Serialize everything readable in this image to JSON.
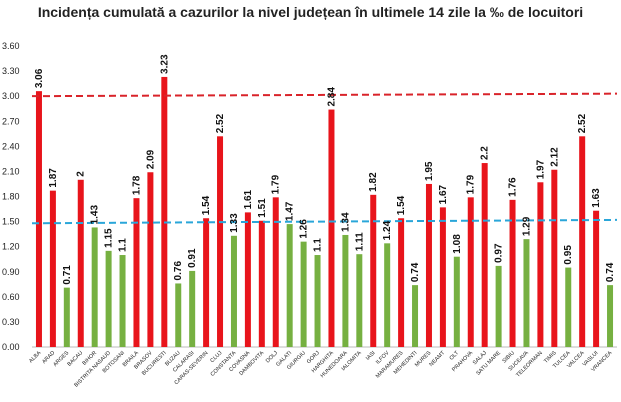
{
  "chart_data": {
    "type": "bar",
    "title": "Incidența cumulată a cazurilor la nivel județean în ultimele 14 zile la ‰ de locuitori",
    "xlabel": "",
    "ylabel": "",
    "ylim": [
      0,
      3.6
    ],
    "yticks": [
      "0.00",
      "0.30",
      "0.60",
      "0.90",
      "1.20",
      "1.50",
      "1.80",
      "2.10",
      "2.40",
      "2.70",
      "3.00",
      "3.30",
      "3.60"
    ],
    "categories": [
      "ALBA",
      "ARAD",
      "ARGES",
      "BACAU",
      "BIHOR",
      "BISTRITA NASAUD",
      "BOTOSANI",
      "BRAILA",
      "BRASOV",
      "BUCURESTI",
      "BUZAU",
      "CALARASI",
      "CARAS-SEVERIN",
      "CLUJ",
      "CONSTANTA",
      "COVASNA",
      "DAMBOVITA",
      "DOLJ",
      "GALATI",
      "GIURGIU",
      "GORJ",
      "HARGHITA",
      "HUNEDOARA",
      "IALOMITA",
      "IASI",
      "ILFOV",
      "MARAMURES",
      "MEHEDINTI",
      "MURES",
      "NEAMT",
      "OLT",
      "PRAHOVA",
      "SALAJ",
      "SATU MARE",
      "SIBIU",
      "SUCEAVA",
      "TELEORMAN",
      "TIMIS",
      "TULCEA",
      "VALCEA",
      "VASLUI",
      "VRANCEA"
    ],
    "values": [
      3.06,
      1.87,
      0.71,
      2,
      1.43,
      1.15,
      1.1,
      1.78,
      2.09,
      3.23,
      0.76,
      0.91,
      1.54,
      2.52,
      1.33,
      1.61,
      1.51,
      1.79,
      1.47,
      1.26,
      1.1,
      2.84,
      1.34,
      1.11,
      1.82,
      1.24,
      1.54,
      0.74,
      1.95,
      1.67,
      1.08,
      1.79,
      2.2,
      0.97,
      1.76,
      1.29,
      1.97,
      2.12,
      0.95,
      2.52,
      1.63,
      0.74
    ],
    "value_labels": [
      "3.06",
      "1.87",
      "0.71",
      "2",
      "1.43",
      "1.15",
      "1.1",
      "1.78",
      "2.09",
      "3.23",
      "0.76",
      "0.91",
      "1.54",
      "2.52",
      "1.33",
      "1.61",
      "1.51",
      "1.79",
      "1.47",
      "1.26",
      "1.1",
      "2.84",
      "1.34",
      "1.11",
      "1.82",
      "1.24",
      "1.54",
      "0.74",
      "1.95",
      "1.67",
      "1.08",
      "1.79",
      "2.2",
      "0.97",
      "1.76",
      "1.29",
      "1.97",
      "2.12",
      "0.95",
      "2.52",
      "1.63",
      "0.74"
    ],
    "colors": {
      "above": "#e8141b",
      "below": "#76b041",
      "upper_threshold_line": "#d9232a",
      "lower_threshold_line": "#2aa6d9"
    },
    "threshold_lines": [
      {
        "from": 3.0,
        "to": 3.03,
        "style": "dashed",
        "color_key": "upper_threshold_line"
      },
      {
        "from": 1.48,
        "to": 1.52,
        "style": "dashed",
        "color_key": "lower_threshold_line"
      }
    ],
    "grid": false,
    "legend": "none"
  }
}
